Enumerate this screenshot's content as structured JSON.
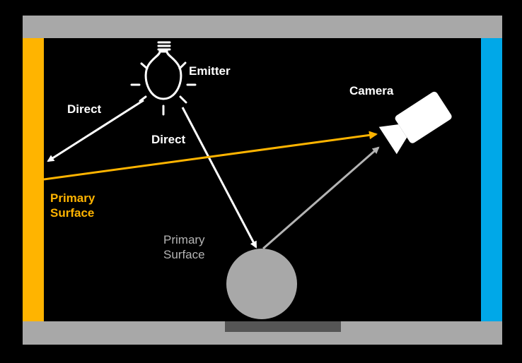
{
  "labels": {
    "emitter": "Emitter",
    "camera": "Camera",
    "direct_left": "Direct",
    "direct_center": "Direct",
    "primary_surface_left": "Primary\nSurface",
    "primary_surface_sphere": "Primary\nSurface"
  },
  "colors": {
    "background": "#000000",
    "wall_gray": "#a8a8a8",
    "floor_pad": "#555555",
    "left_wall": "#ffb400",
    "right_wall": "#00a8e8",
    "sphere": "#a8a8a8",
    "direct_arrow": "#ffffff",
    "primary_ray": "#ffb400",
    "secondary_ray": "#b4b4b4",
    "text": "#ffffff",
    "text_orange": "#ffb400",
    "text_gray": "#b4b4b4"
  },
  "icons": {
    "emitter": "light-bulb-icon",
    "camera": "video-camera-icon"
  }
}
